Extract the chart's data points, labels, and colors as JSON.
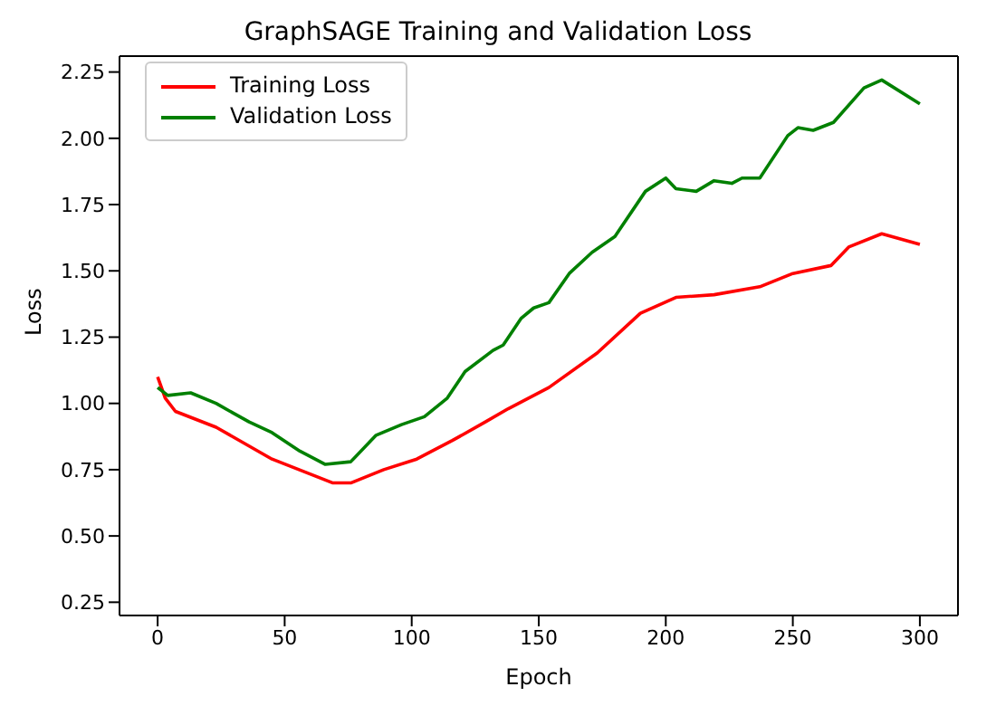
{
  "chart_data": {
    "type": "line",
    "title": "GraphSAGE Training and Validation Loss",
    "xlabel": "Epoch",
    "ylabel": "Loss",
    "xlim": [
      -15,
      315
    ],
    "xticks": [
      0,
      50,
      100,
      150,
      200,
      250,
      300
    ],
    "ylim": [
      0.2,
      2.31
    ],
    "yticks": [
      {
        "value": 0.25,
        "label": "0.25"
      },
      {
        "value": 0.5,
        "label": "0.50"
      },
      {
        "value": 0.75,
        "label": "0.75"
      },
      {
        "value": 1,
        "label": "1.00"
      },
      {
        "value": 1.25,
        "label": "1.25"
      },
      {
        "value": 1.5,
        "label": "1.50"
      },
      {
        "value": 1.75,
        "label": "1.75"
      },
      {
        "value": 2,
        "label": "2.00"
      },
      {
        "value": 2.25,
        "label": "2.25"
      }
    ],
    "grid": false,
    "legend": "top left",
    "marker": "none",
    "line_style": "solid",
    "series": [
      {
        "name": "Training Loss",
        "color": "#ff0000",
        "x": [
          0,
          3,
          7,
          23,
          45,
          69,
          76,
          89,
          102,
          116,
          129,
          138,
          154,
          173,
          190,
          204,
          219,
          237,
          250,
          265,
          272,
          285,
          300
        ],
        "values": [
          1.1,
          1.02,
          0.97,
          0.91,
          0.79,
          0.7,
          0.7,
          0.75,
          0.79,
          0.86,
          0.93,
          0.98,
          1.06,
          1.19,
          1.34,
          1.4,
          1.41,
          1.44,
          1.49,
          1.52,
          1.59,
          1.64,
          1.6
        ]
      },
      {
        "name": "Validation Loss",
        "color": "#008000",
        "x": [
          0,
          4,
          13,
          23,
          36,
          45,
          56,
          66,
          76,
          86,
          96,
          105,
          114,
          121,
          132,
          136,
          143,
          148,
          154,
          162,
          171,
          180,
          192,
          200,
          204,
          212,
          219,
          226,
          230,
          237,
          248,
          252,
          258,
          266,
          278,
          285,
          300
        ],
        "values": [
          1.06,
          1.03,
          1.04,
          1.0,
          0.93,
          0.89,
          0.82,
          0.77,
          0.78,
          0.88,
          0.92,
          0.95,
          1.02,
          1.12,
          1.2,
          1.22,
          1.32,
          1.36,
          1.38,
          1.49,
          1.57,
          1.63,
          1.8,
          1.85,
          1.81,
          1.8,
          1.84,
          1.83,
          1.85,
          1.85,
          2.01,
          2.04,
          2.03,
          2.06,
          2.19,
          2.22,
          2.13
        ]
      }
    ]
  }
}
